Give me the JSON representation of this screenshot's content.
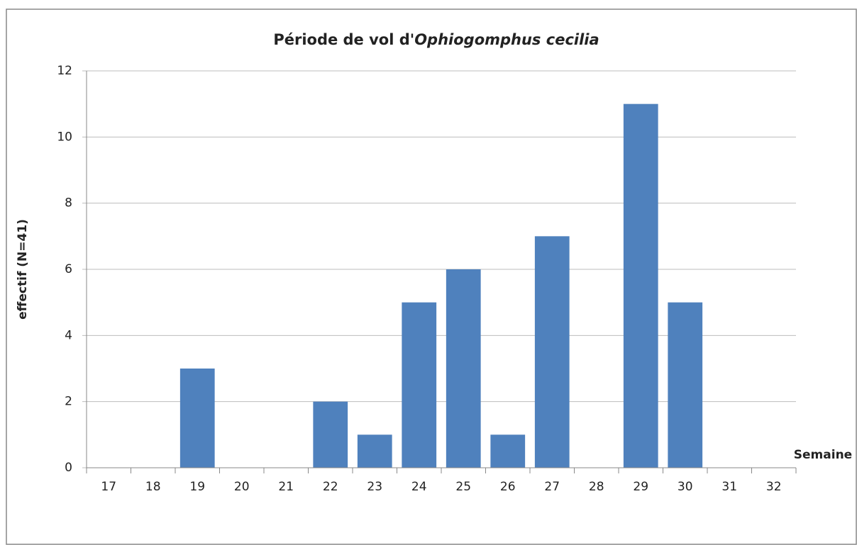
{
  "chart_data": {
    "type": "bar",
    "title": [
      "Période de vol d'",
      "Ophiogomphus cecilia"
    ],
    "x_label": "Semaine",
    "y_label": "effectif (N=41)",
    "categories": [
      "17",
      "18",
      "19",
      "20",
      "21",
      "22",
      "23",
      "24",
      "25",
      "26",
      "27",
      "28",
      "29",
      "30",
      "31",
      "32"
    ],
    "values": [
      0,
      0,
      3,
      0,
      0,
      2,
      1,
      5,
      6,
      1,
      7,
      0,
      11,
      5,
      0,
      0
    ],
    "color": "#4f81bd",
    "ylim": [
      0,
      12
    ],
    "yticks": [
      0,
      2,
      4,
      6,
      8,
      10,
      12
    ],
    "grid": true
  }
}
